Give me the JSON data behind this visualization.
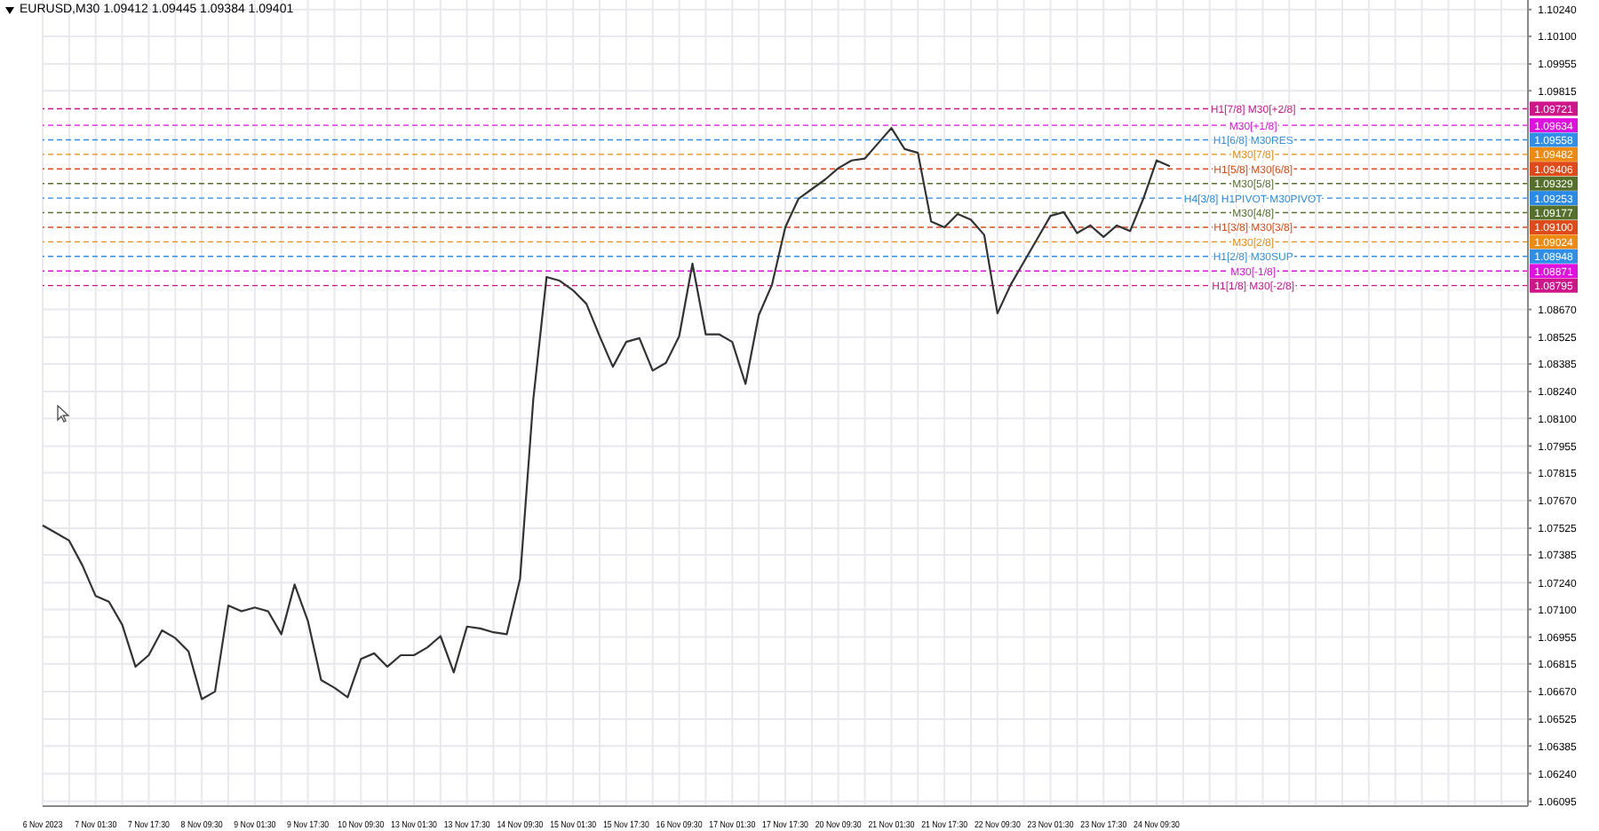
{
  "chart_data": {
    "type": "line",
    "title": "EURUSD,M30  1.09412 1.09445 1.09384 1.09401",
    "grid": true,
    "marker": "none",
    "line_style": "solid",
    "categories": [
      "6 Nov 2023",
      null,
      null,
      null,
      "7 Nov 01:30",
      null,
      null,
      null,
      "7 Nov 17:30",
      null,
      null,
      null,
      "8 Nov 09:30",
      null,
      null,
      null,
      "9 Nov 01:30",
      null,
      null,
      null,
      "9 Nov 17:30",
      null,
      null,
      null,
      "10 Nov 09:30",
      null,
      null,
      null,
      "13 Nov 01:30",
      null,
      null,
      null,
      "13 Nov 17:30",
      null,
      null,
      null,
      "14 Nov 09:30",
      null,
      null,
      null,
      "15 Nov 01:30",
      null,
      null,
      null,
      "15 Nov 17:30",
      null,
      null,
      null,
      "16 Nov 09:30",
      null,
      null,
      null,
      "17 Nov 01:30",
      null,
      null,
      null,
      "17 Nov 17:30",
      null,
      null,
      null,
      "20 Nov 09:30",
      null,
      null,
      null,
      "21 Nov 01:30",
      null,
      null,
      null,
      "21 Nov 17:30",
      null,
      null,
      null,
      "22 Nov 09:30",
      null,
      null,
      null,
      "23 Nov 01:30",
      null,
      null,
      null,
      "23 Nov 17:30",
      null,
      null,
      null,
      "24 Nov 09:30",
      null,
      null,
      null,
      null,
      null,
      null,
      null,
      null,
      null,
      null,
      null,
      null,
      null,
      null,
      null,
      null,
      null,
      null,
      null,
      null,
      null,
      null,
      null,
      null,
      null,
      null,
      null,
      null
    ],
    "ylim": [
      1.0607,
      1.1029
    ],
    "yticks": [
      {
        "value": 1.1024,
        "label": "1.10240"
      },
      {
        "value": 1.101,
        "label": "1.10100"
      },
      {
        "value": 1.09955,
        "label": "1.09955"
      },
      {
        "value": 1.09815,
        "label": "1.09815"
      },
      {
        "value": 1.0867,
        "label": "1.08670"
      },
      {
        "value": 1.08525,
        "label": "1.08525"
      },
      {
        "value": 1.08385,
        "label": "1.08385"
      },
      {
        "value": 1.0824,
        "label": "1.08240"
      },
      {
        "value": 1.081,
        "label": "1.08100"
      },
      {
        "value": 1.07955,
        "label": "1.07955"
      },
      {
        "value": 1.07815,
        "label": "1.07815"
      },
      {
        "value": 1.0767,
        "label": "1.07670"
      },
      {
        "value": 1.07525,
        "label": "1.07525"
      },
      {
        "value": 1.07385,
        "label": "1.07385"
      },
      {
        "value": 1.0724,
        "label": "1.07240"
      },
      {
        "value": 1.071,
        "label": "1.07100"
      },
      {
        "value": 1.06955,
        "label": "1.06955"
      },
      {
        "value": 1.06815,
        "label": "1.06815"
      },
      {
        "value": 1.0667,
        "label": "1.06670"
      },
      {
        "value": 1.06525,
        "label": "1.06525"
      },
      {
        "value": 1.06385,
        "label": "1.06385"
      },
      {
        "value": 1.0624,
        "label": "1.06240"
      },
      {
        "value": 1.06095,
        "label": "1.06095"
      }
    ],
    "series": [
      {
        "color": "#333333",
        "values": [
          1.0754,
          1.075,
          1.0746,
          1.0733,
          1.0717,
          1.0714,
          1.0702,
          1.068,
          1.0686,
          1.0699,
          1.0695,
          1.0688,
          1.0663,
          1.0667,
          1.0712,
          1.0709,
          1.0711,
          1.0709,
          1.0697,
          1.0723,
          1.0704,
          1.0673,
          1.0669,
          1.0664,
          1.0684,
          1.0687,
          1.068,
          1.0686,
          1.0686,
          1.069,
          1.0696,
          1.0677,
          1.0701,
          1.07,
          1.0698,
          1.0697,
          1.0726,
          1.082,
          1.0884,
          1.0882,
          1.0877,
          1.087,
          1.0853,
          1.0837,
          1.085,
          1.0852,
          1.0835,
          1.0839,
          1.0853,
          1.0891,
          1.0854,
          1.0854,
          1.085,
          1.0828,
          1.0864,
          1.088,
          1.091,
          1.0925,
          1.093,
          1.0935,
          1.0941,
          1.0945,
          1.0946,
          1.0954,
          1.0962,
          1.0951,
          1.0949,
          1.0913,
          1.091,
          1.0917,
          1.0914,
          1.0906,
          1.0865,
          1.088,
          1.0892,
          1.0904,
          1.0916,
          1.0918,
          1.0907,
          1.0911,
          1.0905,
          1.0911,
          1.0908,
          1.0925,
          1.0945,
          1.0942,
          null,
          null,
          null,
          null,
          null,
          null,
          null,
          null,
          null,
          null,
          null,
          null,
          null,
          null,
          null,
          null,
          null,
          null,
          null,
          null,
          null,
          null,
          null,
          null,
          null,
          null,
          null
        ]
      }
    ],
    "annotations": [
      "1.09721",
      "1.09634",
      "1.09558",
      "1.09482",
      "1.09406",
      "1.09329",
      "1.09253",
      "1.09177",
      "1.09100",
      "1.09024",
      "1.08948",
      "1.08871",
      "1.08795"
    ],
    "ref_lines": [
      {
        "axis": "y",
        "value": 1.09721,
        "label": "H1[7/8] M30[+2/8]",
        "color": "#d0158a",
        "line_style": "dashed"
      },
      {
        "axis": "y",
        "value": 1.09634,
        "label": "M30[+1/8]",
        "color": "#e010e0",
        "line_style": "dashed"
      },
      {
        "axis": "y",
        "value": 1.09558,
        "label": "H1[6/8] M30RES",
        "color": "#2f8fe8",
        "line_style": "dashed"
      },
      {
        "axis": "y",
        "value": 1.09482,
        "label": "M30[7/8]",
        "color": "#ee8a10",
        "line_style": "dashed"
      },
      {
        "axis": "y",
        "value": 1.09406,
        "label": "H1[5/8] M30[6/8]",
        "color": "#e04a18",
        "line_style": "dashed"
      },
      {
        "axis": "y",
        "value": 1.09329,
        "label": "M30[5/8]",
        "color": "#55702a",
        "line_style": "dashed"
      },
      {
        "axis": "y",
        "value": 1.09253,
        "label": "H4[3/8] H1PIVOT M30PIVOT",
        "color": "#2a8ae8",
        "line_style": "dashed"
      },
      {
        "axis": "y",
        "value": 1.09177,
        "label": "M30[4/8]",
        "color": "#55702a",
        "line_style": "dashed"
      },
      {
        "axis": "y",
        "value": 1.091,
        "label": "H1[3/8] M30[3/8]",
        "color": "#e04a18",
        "line_style": "dashed"
      },
      {
        "axis": "y",
        "value": 1.09024,
        "label": "M30[2/8]",
        "color": "#ee8a10",
        "line_style": "dashed"
      },
      {
        "axis": "y",
        "value": 1.08948,
        "label": "H1[2/8] M30SUP",
        "color": "#2f8fe8",
        "line_style": "dashed"
      },
      {
        "axis": "y",
        "value": 1.08871,
        "label": "M30[-1/8]",
        "color": "#e010e0",
        "line_style": "dashed"
      },
      {
        "axis": "y",
        "value": 1.08795,
        "label": "H1[1/8] M30[-2/8]",
        "color": "#d0158a",
        "line_style": "dashed"
      }
    ]
  }
}
